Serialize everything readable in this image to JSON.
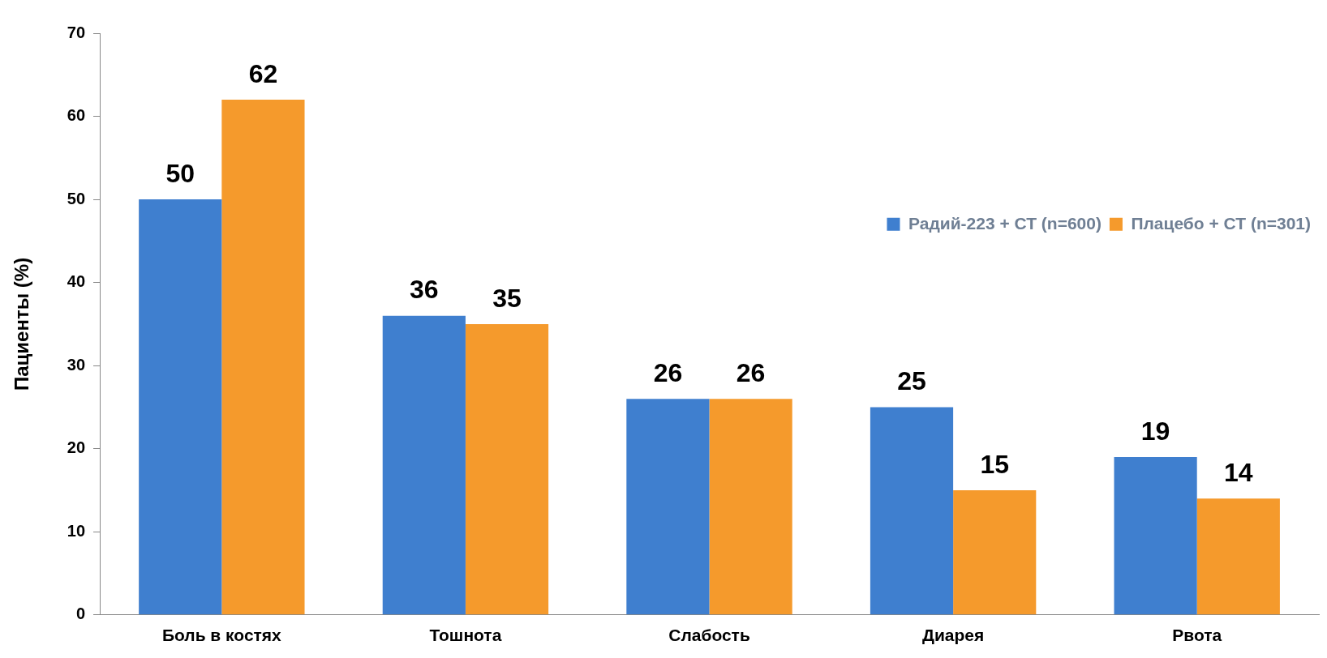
{
  "chart_data": {
    "type": "bar",
    "ylabel": "Пациенты (%)",
    "categories": [
      "Боль в костях",
      "Тошнота",
      "Слабость",
      "Диарея",
      "Рвота"
    ],
    "series": [
      {
        "name": "Радий-223 + СТ (n=600)",
        "color": "#3f7fcf",
        "values": [
          50,
          36,
          26,
          25,
          19
        ]
      },
      {
        "name": "Плацебо + СТ (n=301)",
        "color": "#f59a2c",
        "values": [
          62,
          35,
          26,
          15,
          14
        ]
      }
    ],
    "ylim": [
      0,
      70
    ],
    "yticks": [
      0,
      10,
      20,
      30,
      40,
      50,
      60,
      70
    ],
    "grid": false,
    "legend": "top right",
    "data_labels": true
  }
}
